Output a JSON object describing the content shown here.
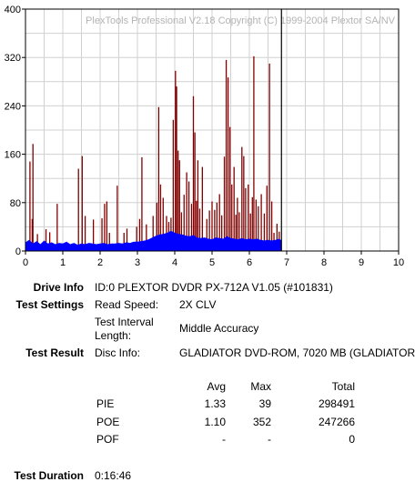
{
  "chart_data": {
    "type": "bar",
    "watermark": "PlexTools Professional V2.18 Copyright (C) 1999-2004 Plextor SA/NV",
    "xlim": [
      0,
      10
    ],
    "ylim": [
      0,
      400
    ],
    "x_ticks": [
      "0",
      "1",
      "2",
      "3",
      "4",
      "5",
      "6",
      "7",
      "8",
      "9",
      "10"
    ],
    "y_ticks": [
      "0",
      "80",
      "160",
      "240",
      "320",
      "400"
    ],
    "scan_end_x": 6.86,
    "grid": true,
    "series": [
      {
        "name": "PIE",
        "color": "#0000ff",
        "values": [
          [
            0.0,
            14
          ],
          [
            0.1,
            18
          ],
          [
            0.2,
            12
          ],
          [
            0.3,
            16
          ],
          [
            0.4,
            11
          ],
          [
            0.5,
            17
          ],
          [
            0.6,
            12
          ],
          [
            0.7,
            14
          ],
          [
            0.8,
            11
          ],
          [
            0.9,
            13
          ],
          [
            1.0,
            12
          ],
          [
            1.1,
            15
          ],
          [
            1.2,
            11
          ],
          [
            1.3,
            13
          ],
          [
            1.4,
            10
          ],
          [
            1.5,
            12
          ],
          [
            1.6,
            11
          ],
          [
            1.7,
            13
          ],
          [
            1.8,
            12
          ],
          [
            1.9,
            11
          ],
          [
            2.0,
            12
          ],
          [
            2.1,
            13
          ],
          [
            2.2,
            11
          ],
          [
            2.3,
            12
          ],
          [
            2.4,
            12
          ],
          [
            2.5,
            13
          ],
          [
            2.6,
            12
          ],
          [
            2.7,
            14
          ],
          [
            2.8,
            13
          ],
          [
            2.9,
            15
          ],
          [
            3.0,
            15
          ],
          [
            3.1,
            16
          ],
          [
            3.2,
            17
          ],
          [
            3.3,
            19
          ],
          [
            3.4,
            22
          ],
          [
            3.5,
            25
          ],
          [
            3.6,
            27
          ],
          [
            3.7,
            28
          ],
          [
            3.8,
            30
          ],
          [
            3.9,
            33
          ],
          [
            4.0,
            30
          ],
          [
            4.1,
            28
          ],
          [
            4.2,
            27
          ],
          [
            4.3,
            25
          ],
          [
            4.4,
            24
          ],
          [
            4.5,
            26
          ],
          [
            4.6,
            22
          ],
          [
            4.7,
            21
          ],
          [
            4.8,
            22
          ],
          [
            4.9,
            20
          ],
          [
            5.0,
            19
          ],
          [
            5.1,
            22
          ],
          [
            5.2,
            21
          ],
          [
            5.3,
            20
          ],
          [
            5.4,
            24
          ],
          [
            5.5,
            21
          ],
          [
            5.6,
            20
          ],
          [
            5.7,
            19
          ],
          [
            5.8,
            21
          ],
          [
            5.9,
            19
          ],
          [
            6.0,
            20
          ],
          [
            6.1,
            19
          ],
          [
            6.2,
            20
          ],
          [
            6.3,
            18
          ],
          [
            6.4,
            17
          ],
          [
            6.5,
            18
          ],
          [
            6.6,
            17
          ],
          [
            6.7,
            18
          ],
          [
            6.8,
            20
          ],
          [
            6.86,
            17
          ]
        ]
      },
      {
        "name": "POE",
        "color": "#800000",
        "values": [
          [
            0.12,
            148
          ],
          [
            0.18,
            53
          ],
          [
            0.2,
            177
          ],
          [
            0.32,
            28
          ],
          [
            0.55,
            36
          ],
          [
            0.65,
            31
          ],
          [
            0.85,
            78
          ],
          [
            1.42,
            136
          ],
          [
            1.52,
            157
          ],
          [
            1.6,
            58
          ],
          [
            1.82,
            52
          ],
          [
            2.05,
            54
          ],
          [
            2.12,
            78
          ],
          [
            2.18,
            82
          ],
          [
            2.25,
            30
          ],
          [
            2.46,
            108
          ],
          [
            2.64,
            30
          ],
          [
            2.72,
            37
          ],
          [
            2.98,
            40
          ],
          [
            3.06,
            53
          ],
          [
            3.12,
            155
          ],
          [
            3.24,
            44
          ],
          [
            3.42,
            58
          ],
          [
            3.52,
            80
          ],
          [
            3.57,
            238
          ],
          [
            3.62,
            110
          ],
          [
            3.69,
            88
          ],
          [
            3.78,
            58
          ],
          [
            3.84,
            48
          ],
          [
            3.9,
            55
          ],
          [
            3.96,
            217
          ],
          [
            4.02,
            298
          ],
          [
            4.05,
            272
          ],
          [
            4.09,
            166
          ],
          [
            4.13,
            150
          ],
          [
            4.18,
            64
          ],
          [
            4.25,
            93
          ],
          [
            4.32,
            130
          ],
          [
            4.38,
            115
          ],
          [
            4.45,
            78
          ],
          [
            4.5,
            256
          ],
          [
            4.54,
            196
          ],
          [
            4.58,
            83
          ],
          [
            4.62,
            150
          ],
          [
            4.67,
            70
          ],
          [
            4.74,
            139
          ],
          [
            4.86,
            53
          ],
          [
            4.93,
            67
          ],
          [
            5.0,
            82
          ],
          [
            5.07,
            68
          ],
          [
            5.13,
            80
          ],
          [
            5.2,
            94
          ],
          [
            5.26,
            59
          ],
          [
            5.33,
            156
          ],
          [
            5.38,
            316
          ],
          [
            5.43,
            287
          ],
          [
            5.48,
            205
          ],
          [
            5.53,
            110
          ],
          [
            5.59,
            139
          ],
          [
            5.64,
            60
          ],
          [
            5.68,
            88
          ],
          [
            5.73,
            64
          ],
          [
            5.8,
            172
          ],
          [
            5.85,
            157
          ],
          [
            5.9,
            104
          ],
          [
            5.97,
            110
          ],
          [
            6.03,
            62
          ],
          [
            6.08,
            89
          ],
          [
            6.12,
            322
          ],
          [
            6.18,
            85
          ],
          [
            6.24,
            74
          ],
          [
            6.32,
            94
          ],
          [
            6.4,
            62
          ],
          [
            6.47,
            108
          ],
          [
            6.54,
            310
          ],
          [
            6.6,
            82
          ],
          [
            6.66,
            30
          ],
          [
            6.74,
            45
          ],
          [
            6.8,
            32
          ]
        ]
      }
    ]
  },
  "info": {
    "drive_info_label": "Drive Info",
    "drive_info_value": "ID:0 PLEXTOR DVDR PX-712A V1.05 (#101831)",
    "test_settings_label": "Test Settings",
    "read_speed_label": "Read Speed:",
    "read_speed_value": "2X CLV",
    "interval_label_1": "Test Interval",
    "interval_label_2": "Length:",
    "interval_value": "Middle Accuracy",
    "test_result_label": "Test Result",
    "disc_info_label": "Disc Info:",
    "disc_info_value": "GLADIATOR DVD-ROM, 7020 MB (GLADIATOR)"
  },
  "results": {
    "headers": {
      "avg": "Avg",
      "max": "Max",
      "total": "Total"
    },
    "rows": [
      {
        "name": "PIE",
        "avg": "1.33",
        "max": "39",
        "total": "298491"
      },
      {
        "name": "POE",
        "avg": "1.10",
        "max": "352",
        "total": "247266"
      },
      {
        "name": "POF",
        "avg": "-",
        "max": "-",
        "total": "0"
      }
    ]
  },
  "duration": {
    "label": "Test Duration",
    "value": "0:16:46"
  }
}
